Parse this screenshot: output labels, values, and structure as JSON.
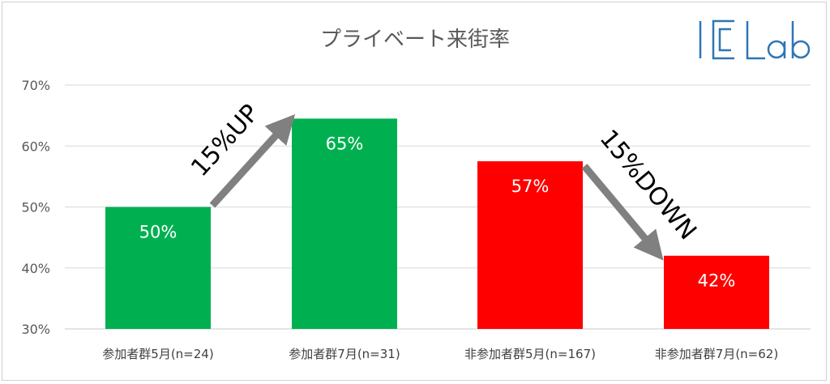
{
  "chart_data": {
    "type": "bar",
    "title": "プライベート来街率",
    "categories": [
      "参加者群5月(n=24)",
      "参加者群7月(n=31)",
      "非参加者群5月(n=167)",
      "非参加者群7月(n=62)"
    ],
    "values": [
      50,
      64.5,
      57.5,
      42
    ],
    "value_labels": [
      "50%",
      "65%",
      "57%",
      "42%"
    ],
    "bar_colors": [
      "#00b050",
      "#00b050",
      "#ff0000",
      "#ff0000"
    ],
    "yticks": [
      "30%",
      "40%",
      "50%",
      "60%",
      "70%"
    ],
    "ylim": [
      30,
      70
    ],
    "grid": true,
    "annotations": [
      {
        "text": "15%UP",
        "from": 0,
        "to": 1
      },
      {
        "text": "15%DOWN",
        "from": 2,
        "to": 3
      }
    ]
  },
  "logo": {
    "text": "ICLab",
    "color": "#2e75b6"
  }
}
